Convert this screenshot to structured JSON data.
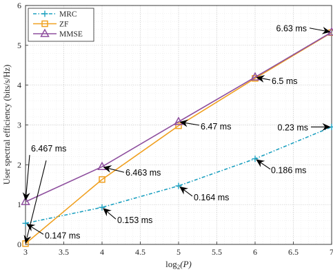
{
  "chart_data": {
    "type": "line",
    "xlabel": "log",
    "xlabel_sub": "2",
    "xlabel_arg": "(P)",
    "ylabel": "User spectral efficiency (bits/s/Hz)",
    "xlim": [
      3,
      7
    ],
    "ylim": [
      0,
      6
    ],
    "xticks": [
      "3",
      "3.5",
      "4",
      "4.5",
      "5",
      "5.5",
      "6",
      "6.5",
      "7"
    ],
    "xtick_values": [
      3,
      3.5,
      4,
      4.5,
      5,
      5.5,
      6,
      6.5,
      7
    ],
    "yticks": [
      "0",
      "1",
      "2",
      "3",
      "4",
      "5",
      "6"
    ],
    "ytick_values": [
      0,
      1,
      2,
      3,
      4,
      5,
      6
    ],
    "grid": true,
    "legend_position": "top-left",
    "series": [
      {
        "name": "MRC",
        "color": "#1a9fbf",
        "dash": true,
        "marker": "plus",
        "x": [
          3,
          4,
          5,
          6,
          7
        ],
        "y": [
          0.53,
          0.93,
          1.47,
          2.15,
          2.95
        ]
      },
      {
        "name": "ZF",
        "color": "#f0a020",
        "dash": false,
        "marker": "square",
        "x": [
          3,
          4,
          5,
          6,
          7
        ],
        "y": [
          0.02,
          1.63,
          2.98,
          4.17,
          5.32
        ]
      },
      {
        "name": "MMSE",
        "color": "#8e4f9e",
        "dash": false,
        "marker": "triangle",
        "x": [
          3,
          4,
          5,
          6,
          7
        ],
        "y": [
          1.07,
          1.95,
          3.08,
          4.2,
          5.33
        ]
      }
    ],
    "annotations": [
      {
        "text": "6.463 ms",
        "x": 4,
        "y": 1.95
      },
      {
        "text": "6.47 ms",
        "x": 5,
        "y": 3.08
      },
      {
        "text": "6.5 ms",
        "x": 6,
        "y": 4.2
      },
      {
        "text": "6.63 ms",
        "x": 7,
        "y": 5.33
      },
      {
        "text": "6.467 ms",
        "x": 3,
        "y": 1.07
      },
      {
        "text": "0.147 ms",
        "x": 3,
        "y": 0.53
      },
      {
        "text": "0.153 ms",
        "x": 4,
        "y": 0.93
      },
      {
        "text": "0.164 ms",
        "x": 5,
        "y": 1.47
      },
      {
        "text": "0.186 ms",
        "x": 6,
        "y": 2.15
      },
      {
        "text": "0.23 ms",
        "x": 7,
        "y": 2.95
      }
    ]
  }
}
